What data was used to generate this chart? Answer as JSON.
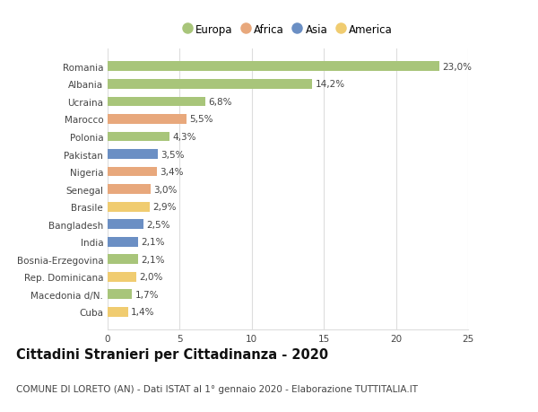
{
  "categories": [
    "Romania",
    "Albania",
    "Ucraina",
    "Marocco",
    "Polonia",
    "Pakistan",
    "Nigeria",
    "Senegal",
    "Brasile",
    "Bangladesh",
    "India",
    "Bosnia-Erzegovina",
    "Rep. Dominicana",
    "Macedonia d/N.",
    "Cuba"
  ],
  "values": [
    23.0,
    14.2,
    6.8,
    5.5,
    4.3,
    3.5,
    3.4,
    3.0,
    2.9,
    2.5,
    2.1,
    2.1,
    2.0,
    1.7,
    1.4
  ],
  "labels": [
    "23,0%",
    "14,2%",
    "6,8%",
    "5,5%",
    "4,3%",
    "3,5%",
    "3,4%",
    "3,0%",
    "2,9%",
    "2,5%",
    "2,1%",
    "2,1%",
    "2,0%",
    "1,7%",
    "1,4%"
  ],
  "continents": [
    "Europa",
    "Europa",
    "Europa",
    "Africa",
    "Europa",
    "Asia",
    "Africa",
    "Africa",
    "America",
    "Asia",
    "Asia",
    "Europa",
    "America",
    "Europa",
    "America"
  ],
  "continent_colors": {
    "Europa": "#a8c57a",
    "Africa": "#e8a87c",
    "Asia": "#6b8fc4",
    "America": "#f0cc70"
  },
  "legend_order": [
    "Europa",
    "Africa",
    "Asia",
    "America"
  ],
  "xlim": [
    0,
    25
  ],
  "xticks": [
    0,
    5,
    10,
    15,
    20,
    25
  ],
  "title": "Cittadini Stranieri per Cittadinanza - 2020",
  "subtitle": "COMUNE DI LORETO (AN) - Dati ISTAT al 1° gennaio 2020 - Elaborazione TUTTITALIA.IT",
  "title_fontsize": 10.5,
  "subtitle_fontsize": 7.5,
  "label_fontsize": 7.5,
  "tick_fontsize": 7.5,
  "bar_height": 0.55,
  "background_color": "#ffffff",
  "grid_color": "#dddddd",
  "text_color": "#444444"
}
